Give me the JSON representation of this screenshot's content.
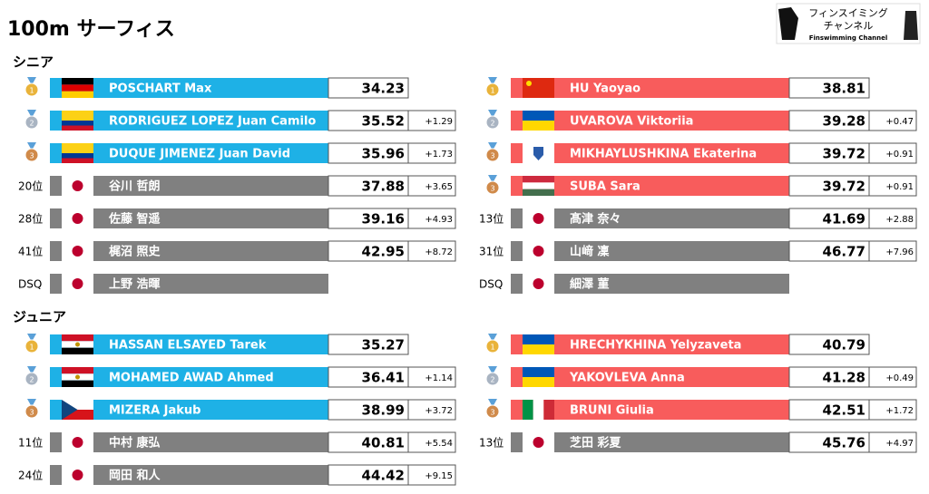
{
  "title": "100m サーフィス",
  "logo": {
    "line1": "フィンスイミング",
    "line2": "チャンネル",
    "caption": "Finswimming Channel"
  },
  "sections": [
    {
      "title": "シニア",
      "columns": [
        [
          {
            "rank": "1",
            "name": "POSCHART Max",
            "time": "34.23"
          },
          {
            "rank": "2",
            "name": "RODRIGUEZ LOPEZ Juan Camilo",
            "time": "35.52",
            "diff": "+1.29"
          },
          {
            "rank": "3",
            "name": "DUQUE JIMENEZ Juan David",
            "time": "35.96",
            "diff": "+1.73"
          },
          {
            "rank": "20位",
            "name": "谷川 哲朗",
            "time": "37.88",
            "diff": "+3.65"
          },
          {
            "rank": "28位",
            "name": "佐藤 智遥",
            "time": "39.16",
            "diff": "+4.93"
          },
          {
            "rank": "41位",
            "name": "梶沼 照史",
            "time": "42.95",
            "diff": "+8.72"
          },
          {
            "rank": "DSQ",
            "name": "上野 浩暉"
          }
        ],
        [
          {
            "rank": "1",
            "name": "HU Yaoyao",
            "time": "38.81"
          },
          {
            "rank": "2",
            "name": "UVAROVA Viktoriia",
            "time": "39.28",
            "diff": "+0.47"
          },
          {
            "rank": "3",
            "name": "MIKHAYLUSHKINA Ekaterina",
            "time": "39.72",
            "diff": "+0.91"
          },
          {
            "rank": "3",
            "name": "SUBA Sara",
            "time": "39.72",
            "diff": "+0.91"
          },
          {
            "rank": "13位",
            "name": "髙津 奈々",
            "time": "41.69",
            "diff": "+2.88"
          },
          {
            "rank": "31位",
            "name": "山﨑 凜",
            "time": "46.77",
            "diff": "+7.96"
          },
          {
            "rank": "DSQ",
            "name": "細澤 菫"
          }
        ]
      ]
    },
    {
      "title": "ジュニア",
      "columns": [
        [
          {
            "rank": "1",
            "name": "HASSAN ELSAYED Tarek",
            "time": "35.27"
          },
          {
            "rank": "2",
            "name": "MOHAMED AWAD Ahmed",
            "time": "36.41",
            "diff": "+1.14"
          },
          {
            "rank": "3",
            "name": "MIZERA Jakub",
            "time": "38.99",
            "diff": "+3.72"
          },
          {
            "rank": "11位",
            "name": "中村 康弘",
            "time": "40.81",
            "diff": "+5.54"
          },
          {
            "rank": "24位",
            "name": "岡田 和人",
            "time": "44.42",
            "diff": "+9.15"
          }
        ],
        [
          {
            "rank": "1",
            "name": "HRECHYKHINA Yelyzaveta",
            "time": "40.79"
          },
          {
            "rank": "2",
            "name": "YAKOVLEVA Anna",
            "time": "41.28",
            "diff": "+0.49"
          },
          {
            "rank": "3",
            "name": "BRUNI Giulia",
            "time": "42.51",
            "diff": "+1.72"
          },
          {
            "rank": "13位",
            "name": "芝田 彩夏",
            "time": "45.76",
            "diff": "+4.97"
          }
        ]
      ]
    }
  ]
}
